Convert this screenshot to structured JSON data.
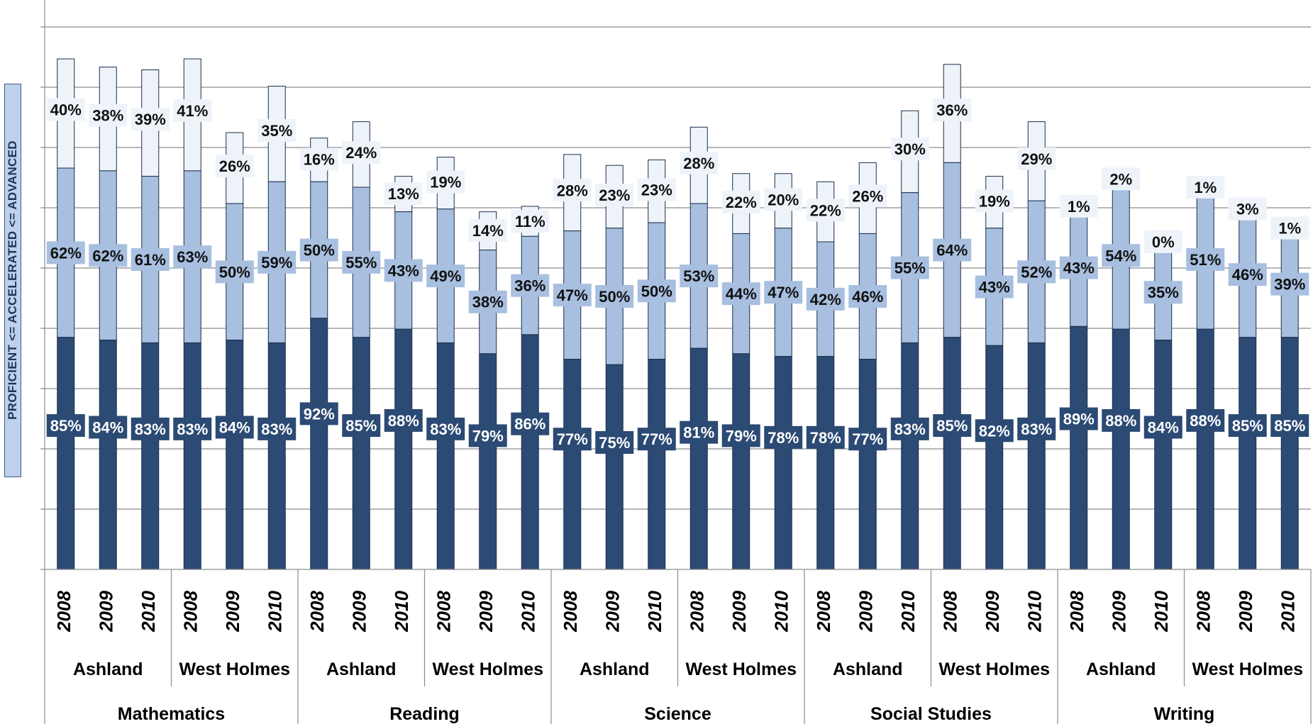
{
  "chart_data": {
    "type": "bar",
    "stacked": "overlapping",
    "ylabel": "PROFICIENT <= ACCELERATED <= ADVANCED",
    "grid": true,
    "legend": "none",
    "colors": {
      "proficient": "#2b4a74",
      "accelerated": "#a8bfe0",
      "advanced": "#eef3fa",
      "border": "#1c2e4a"
    },
    "subjects": [
      "Mathematics",
      "Reading",
      "Science",
      "Social Studies",
      "Writing"
    ],
    "districts": [
      "Ashland",
      "West Holmes"
    ],
    "years": [
      "2008",
      "2009",
      "2010"
    ],
    "series": [
      {
        "key": "proficient",
        "values": [
          85,
          84,
          83,
          83,
          84,
          83,
          92,
          85,
          88,
          83,
          79,
          86,
          77,
          75,
          77,
          81,
          79,
          78,
          78,
          77,
          83,
          85,
          82,
          83,
          89,
          88,
          84,
          88,
          85,
          85
        ]
      },
      {
        "key": "accelerated",
        "values": [
          62,
          62,
          61,
          63,
          50,
          59,
          50,
          55,
          43,
          49,
          38,
          36,
          47,
          50,
          50,
          53,
          44,
          47,
          42,
          46,
          55,
          64,
          43,
          52,
          43,
          54,
          35,
          51,
          46,
          39
        ]
      },
      {
        "key": "advanced",
        "values": [
          40,
          38,
          39,
          41,
          26,
          35,
          16,
          24,
          13,
          19,
          14,
          11,
          28,
          23,
          23,
          28,
          22,
          20,
          22,
          26,
          30,
          36,
          19,
          29,
          1,
          2,
          0,
          1,
          3,
          1
        ]
      }
    ],
    "value_suffix": "%"
  }
}
